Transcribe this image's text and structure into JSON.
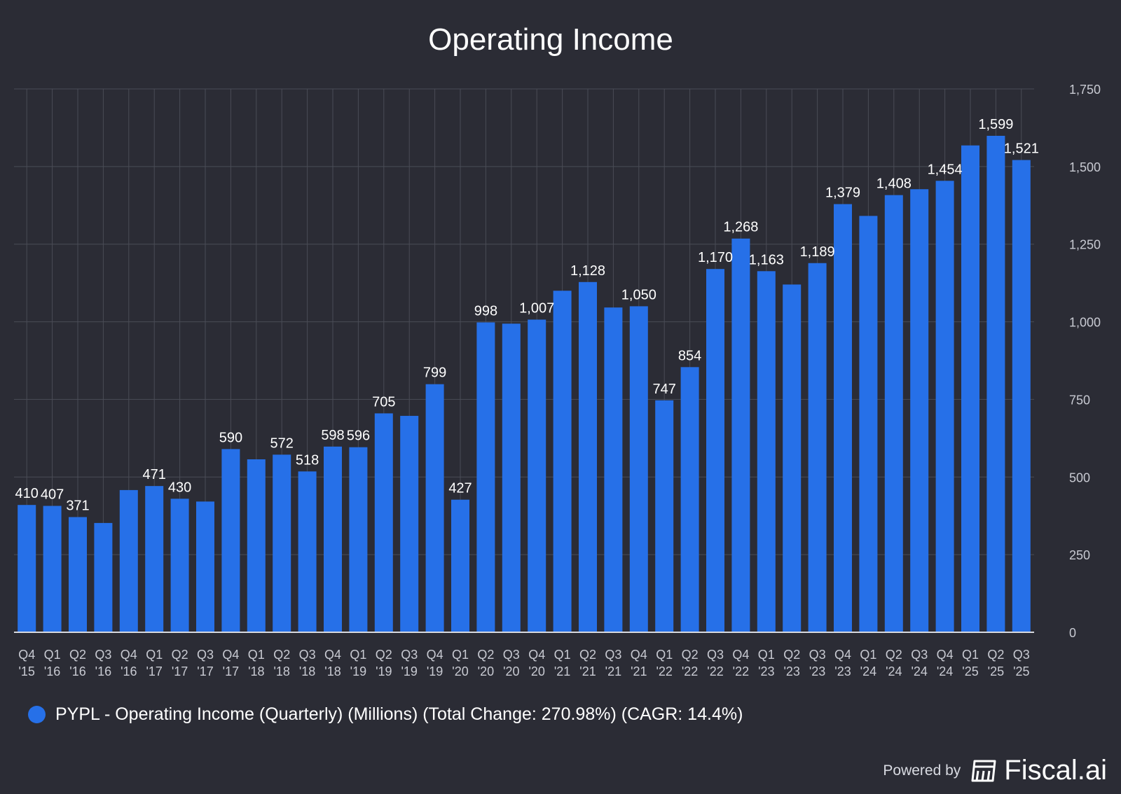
{
  "chart_data": {
    "type": "bar",
    "title": "Operating Income",
    "xlabel": "",
    "ylabel": "",
    "ylim": [
      0,
      1750
    ],
    "y_ticks": [
      0,
      250,
      500,
      750,
      1000,
      1250,
      1500,
      1750
    ],
    "y_tick_labels": [
      "0",
      "250",
      "500",
      "750",
      "1,000",
      "1,250",
      "1,500",
      "1,750"
    ],
    "grid": true,
    "categories": [
      "Q4 '15",
      "Q1 '16",
      "Q2 '16",
      "Q3 '16",
      "Q4 '16",
      "Q1 '17",
      "Q2 '17",
      "Q3 '17",
      "Q4 '17",
      "Q1 '18",
      "Q2 '18",
      "Q3 '18",
      "Q4 '18",
      "Q1 '19",
      "Q2 '19",
      "Q3 '19",
      "Q4 '19",
      "Q1 '20",
      "Q2 '20",
      "Q3 '20",
      "Q4 '20",
      "Q1 '21",
      "Q2 '21",
      "Q3 '21",
      "Q4 '21",
      "Q1 '22",
      "Q2 '22",
      "Q3 '22",
      "Q4 '22",
      "Q1 '23",
      "Q2 '23",
      "Q3 '23",
      "Q4 '23",
      "Q1 '24",
      "Q2 '24",
      "Q3 '24",
      "Q4 '24",
      "Q1 '25",
      "Q2 '25",
      "Q3 '25"
    ],
    "values": [
      410,
      407,
      371,
      352,
      458,
      471,
      430,
      421,
      590,
      557,
      572,
      518,
      598,
      596,
      705,
      697,
      799,
      427,
      998,
      994,
      1007,
      1100,
      1128,
      1046,
      1050,
      747,
      854,
      1170,
      1268,
      1163,
      1120,
      1189,
      1379,
      1341,
      1408,
      1427,
      1454,
      1568,
      1599,
      1521
    ],
    "data_labels": [
      "410",
      "407",
      "371",
      null,
      null,
      "471",
      "430",
      null,
      "590",
      null,
      "572",
      "518",
      "598",
      "596",
      "705",
      null,
      "799",
      "427",
      "998",
      null,
      "1,007",
      null,
      "1,128",
      null,
      "1,050",
      "747",
      "854",
      "1,170",
      "1,268",
      "1,163",
      null,
      "1,189",
      "1,379",
      null,
      "1,408",
      null,
      "1,454",
      null,
      "1,599",
      "1,521"
    ],
    "series_name": "PYPL - Operating Income (Quarterly) (Millions) (Total Change: 270.98%) (CAGR: 14.4%)",
    "legend_position": "bottom-left"
  },
  "colors": {
    "background": "#2b2c35",
    "bar": "#2670e8",
    "grid": "#4a4c56",
    "axis_text": "#c8cad2",
    "label_text": "#ffffff"
  },
  "legend": {
    "label": "PYPL - Operating Income (Quarterly) (Millions) (Total Change: 270.98%) (CAGR: 14.4%)"
  },
  "footer": {
    "powered_by": "Powered by",
    "brand": "Fiscal.ai",
    "brand_icon": "fiscal-ai-logo-icon"
  }
}
